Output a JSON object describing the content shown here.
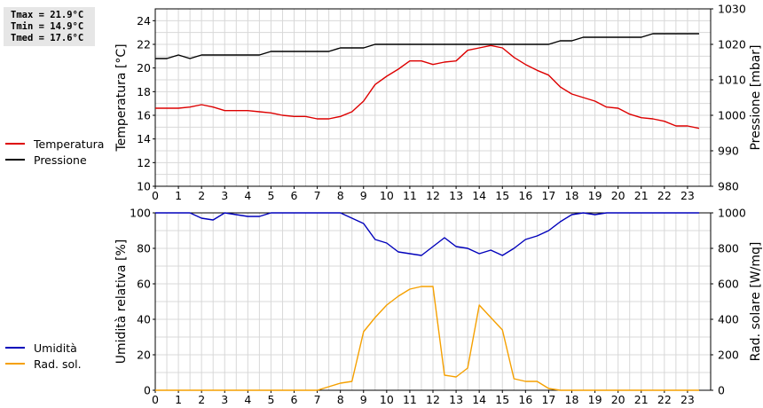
{
  "stats": {
    "tmax": "Tmax = 21.9°C",
    "tmin": "Tmin = 14.9°C",
    "tmed": "Tmed = 17.6°C"
  },
  "colors": {
    "temperatura": "#dd0000",
    "pressione": "#000000",
    "umidita": "#0000bb",
    "radsol": "#f5a000",
    "grid": "#d8d8d8"
  },
  "chart_data": [
    {
      "type": "line",
      "x_ticks": [
        "0",
        "1",
        "2",
        "3",
        "4",
        "5",
        "6",
        "7",
        "8",
        "9",
        "10",
        "11",
        "12",
        "13",
        "14",
        "15",
        "16",
        "17",
        "18",
        "19",
        "20",
        "21",
        "22",
        "23"
      ],
      "xlim": [
        0,
        24
      ],
      "ylabel_left": "Temperatura [°C]",
      "ylabel_right": "Pressione [mbar]",
      "ylim_left": [
        10,
        25
      ],
      "ylim_right": [
        980,
        1030
      ],
      "y_ticks_left": [
        "10",
        "12",
        "14",
        "16",
        "18",
        "20",
        "22",
        "24"
      ],
      "y_ticks_right": [
        "980",
        "990",
        "1000",
        "1010",
        "1020",
        "1030"
      ],
      "legend_position": "left",
      "series": [
        {
          "name": "Temperatura",
          "axis": "left",
          "color_key": "temperatura",
          "x": [
            0,
            0.5,
            1,
            1.5,
            2,
            2.5,
            3,
            3.5,
            4,
            4.5,
            5,
            5.5,
            6,
            6.5,
            7,
            7.5,
            8,
            8.5,
            9,
            9.5,
            10,
            10.5,
            11,
            11.5,
            12,
            12.5,
            13,
            13.5,
            14,
            14.5,
            15,
            15.5,
            16,
            16.5,
            17,
            17.5,
            18,
            18.5,
            19,
            19.5,
            20,
            20.5,
            21,
            21.5,
            22,
            22.5,
            23,
            23.5
          ],
          "y": [
            16.6,
            16.6,
            16.6,
            16.7,
            16.9,
            16.7,
            16.4,
            16.4,
            16.4,
            16.3,
            16.2,
            16.0,
            15.9,
            15.9,
            15.7,
            15.7,
            15.9,
            16.3,
            17.2,
            18.6,
            19.3,
            19.9,
            20.6,
            20.6,
            20.3,
            20.5,
            20.6,
            21.5,
            21.7,
            21.9,
            21.7,
            20.9,
            20.3,
            19.8,
            19.4,
            18.4,
            17.8,
            17.5,
            17.2,
            16.7,
            16.6,
            16.1,
            15.8,
            15.7,
            15.5,
            15.1,
            15.1,
            14.9
          ]
        },
        {
          "name": "Pressione",
          "axis": "right",
          "color_key": "pressione",
          "x": [
            0,
            0.5,
            1,
            1.5,
            2,
            2.5,
            3,
            3.5,
            4,
            4.5,
            5,
            5.5,
            6,
            6.5,
            7,
            7.5,
            8,
            8.5,
            9,
            9.5,
            10,
            10.5,
            11,
            11.5,
            12,
            12.5,
            13,
            13.5,
            14,
            14.5,
            15,
            15.5,
            16,
            16.5,
            17,
            17.5,
            18,
            18.5,
            19,
            19.5,
            20,
            20.5,
            21,
            21.5,
            22,
            22.5,
            23,
            23.5
          ],
          "y": [
            1016,
            1016,
            1017,
            1016,
            1017,
            1017,
            1017,
            1017,
            1017,
            1017,
            1018,
            1018,
            1018,
            1018,
            1018,
            1018,
            1019,
            1019,
            1019,
            1020,
            1020,
            1020,
            1020,
            1020,
            1020,
            1020,
            1020,
            1020,
            1020,
            1020,
            1020,
            1020,
            1020,
            1020,
            1020,
            1021,
            1021,
            1022,
            1022,
            1022,
            1022,
            1022,
            1022,
            1023,
            1023,
            1023,
            1023,
            1023
          ]
        }
      ]
    },
    {
      "type": "line",
      "x_ticks": [
        "0",
        "1",
        "2",
        "3",
        "4",
        "5",
        "6",
        "7",
        "8",
        "9",
        "10",
        "11",
        "12",
        "13",
        "14",
        "15",
        "16",
        "17",
        "18",
        "19",
        "20",
        "21",
        "22",
        "23"
      ],
      "xlim": [
        0,
        24
      ],
      "ylabel_left": "Umidità relativa [%]",
      "ylabel_right": "Rad. solare [W/mq]",
      "ylim_left": [
        0,
        100
      ],
      "ylim_right": [
        0,
        1000
      ],
      "y_ticks_left": [
        "0",
        "20",
        "40",
        "60",
        "80",
        "100"
      ],
      "y_ticks_right": [
        "0",
        "200",
        "400",
        "600",
        "800",
        "1000"
      ],
      "legend_position": "left",
      "series": [
        {
          "name": "Umidità",
          "axis": "left",
          "color_key": "umidita",
          "x": [
            0,
            0.5,
            1,
            1.5,
            2,
            2.5,
            3,
            3.5,
            4,
            4.5,
            5,
            5.5,
            6,
            6.5,
            7,
            7.5,
            8,
            8.5,
            9,
            9.5,
            10,
            10.5,
            11,
            11.5,
            12,
            12.5,
            13,
            13.5,
            14,
            14.5,
            15,
            15.5,
            16,
            16.5,
            17,
            17.5,
            18,
            18.5,
            19,
            19.5,
            20,
            20.5,
            21,
            21.5,
            22,
            22.5,
            23,
            23.5
          ],
          "y": [
            100,
            100,
            100,
            100,
            97,
            96,
            100,
            99,
            98,
            98,
            100,
            100,
            100,
            100,
            100,
            100,
            100,
            97,
            94,
            85,
            83,
            78,
            77,
            76,
            81,
            86,
            81,
            80,
            77,
            79,
            76,
            80,
            85,
            87,
            90,
            95,
            99,
            100,
            99,
            100,
            100,
            100,
            100,
            100,
            100,
            100,
            100,
            100
          ]
        },
        {
          "name": "Rad. sol.",
          "axis": "right",
          "color_key": "radsol",
          "x": [
            0,
            0.5,
            1,
            1.5,
            2,
            2.5,
            3,
            3.5,
            4,
            4.5,
            5,
            5.5,
            6,
            6.5,
            7,
            7.5,
            8,
            8.5,
            9,
            9.5,
            10,
            10.5,
            11,
            11.5,
            12,
            12.5,
            13,
            13.5,
            14,
            14.5,
            15,
            15.5,
            16,
            16.5,
            17,
            17.5,
            18,
            18.5,
            19,
            19.5,
            20,
            20.5,
            21,
            21.5,
            22,
            22.5,
            23,
            23.5
          ],
          "y": [
            0,
            0,
            0,
            0,
            0,
            0,
            0,
            0,
            0,
            0,
            0,
            0,
            0,
            0,
            0,
            20,
            40,
            50,
            330,
            410,
            480,
            530,
            570,
            585,
            585,
            85,
            75,
            125,
            480,
            410,
            340,
            65,
            50,
            50,
            10,
            0,
            0,
            0,
            0,
            0,
            0,
            0,
            0,
            0,
            0,
            0,
            0,
            0
          ]
        }
      ]
    }
  ]
}
